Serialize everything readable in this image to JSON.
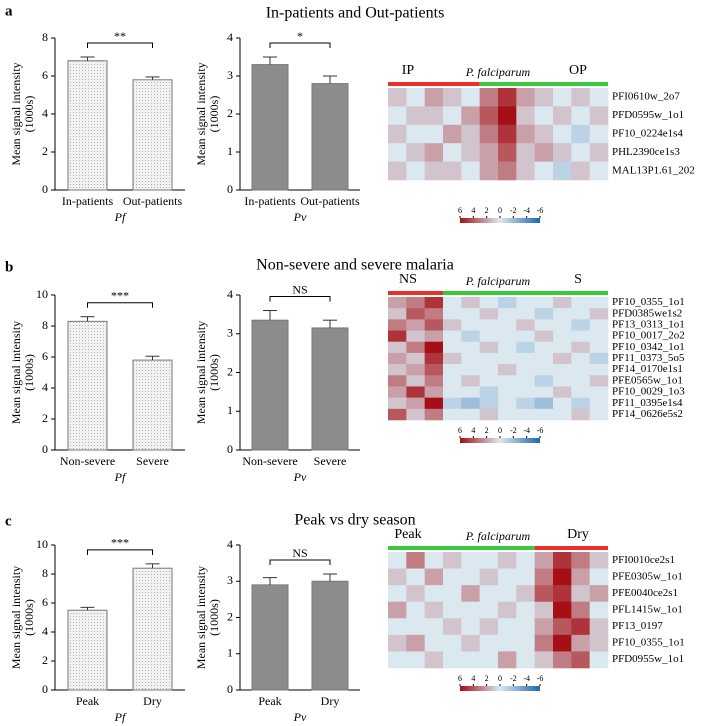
{
  "panels": [
    {
      "letter": "a",
      "title": "In-patients and Out-patients"
    },
    {
      "letter": "b",
      "title": "Non-severe and severe malaria"
    },
    {
      "letter": "c",
      "title": "Peak vs dry season"
    }
  ],
  "chart_data": [
    {
      "type": "bar",
      "categories": [
        "In-patients",
        "Out-patients"
      ],
      "values": [
        6.8,
        5.8
      ],
      "errors": [
        0.2,
        0.15
      ],
      "color": "#f2f2f2",
      "ylim": [
        0,
        8
      ],
      "yticks": [
        0,
        2,
        4,
        6,
        8
      ],
      "ylabel": [
        "Mean signal intensity",
        "(1000s)"
      ],
      "xlabel": "Pf",
      "significance": "**",
      "significance_color": "#e8302a"
    },
    {
      "type": "bar",
      "categories": [
        "In-patients",
        "Out-patients"
      ],
      "values": [
        3.3,
        2.8
      ],
      "errors": [
        0.2,
        0.2
      ],
      "color": "#8c8c8c",
      "ylim": [
        0,
        4
      ],
      "yticks": [
        0,
        1,
        2,
        3,
        4
      ],
      "ylabel": [
        "Mean signal intensity",
        "(1000s)"
      ],
      "xlabel": "Pv",
      "significance": "*",
      "significance_color": "#e8302a"
    },
    {
      "type": "heatmap",
      "species": "P. falciparum",
      "groups": [
        {
          "label": "IP",
          "color": "#e8302a",
          "columns": 5
        },
        {
          "label": "OP",
          "color": "#3cc83c",
          "columns": 7
        }
      ],
      "rows": [
        "PFI0610w_2o7",
        "PFD0595w_1o1",
        "PF10_0224e1s4",
        "PHL2390ce1s3",
        "MAL13P1.61_202"
      ],
      "matrix": [
        [
          1,
          0,
          2,
          1,
          0,
          3,
          5,
          2,
          1,
          0,
          1,
          0
        ],
        [
          0,
          1,
          1,
          0,
          2,
          4,
          6,
          1,
          0,
          1,
          0,
          1
        ],
        [
          1,
          0,
          0,
          2,
          1,
          3,
          5,
          2,
          1,
          0,
          -1,
          0
        ],
        [
          0,
          1,
          2,
          0,
          1,
          2,
          4,
          1,
          2,
          1,
          0,
          1
        ],
        [
          1,
          0,
          1,
          1,
          0,
          2,
          3,
          1,
          0,
          -1,
          1,
          0
        ]
      ],
      "zlim": [
        6,
        -6
      ],
      "zticks": [
        6,
        4,
        2,
        0,
        -2,
        -4,
        -6
      ]
    },
    {
      "type": "bar",
      "categories": [
        "Non-severe",
        "Severe"
      ],
      "values": [
        8.3,
        5.8
      ],
      "errors": [
        0.3,
        0.25
      ],
      "color": "#f2f2f2",
      "ylim": [
        0,
        10
      ],
      "yticks": [
        0,
        2,
        4,
        6,
        8,
        10
      ],
      "ylabel": [
        "Mean signal intensity",
        "(1000s)"
      ],
      "xlabel": "Pf",
      "significance": "***",
      "significance_color": "#e8302a"
    },
    {
      "type": "bar",
      "categories": [
        "Non-severe",
        "Severe"
      ],
      "values": [
        3.35,
        3.15
      ],
      "errors": [
        0.25,
        0.2
      ],
      "color": "#8c8c8c",
      "ylim": [
        0,
        4
      ],
      "yticks": [
        0,
        1,
        2,
        3,
        4
      ],
      "ylabel": [
        "Mean signal intensity",
        "(1000s)"
      ],
      "xlabel": "Pv",
      "significance": "NS",
      "significance_color": "#000000"
    },
    {
      "type": "heatmap",
      "species": "P. falciparum",
      "groups": [
        {
          "label": "NS",
          "color": "#e8302a",
          "columns": 3
        },
        {
          "label": "S",
          "color": "#3cc83c",
          "columns": 9
        }
      ],
      "rows": [
        "PF10_0355_1o1",
        "PFD0385we1s2",
        "PF13_0313_1o1",
        "PF10_0017_2o2",
        "PF10_0342_1o1",
        "PF11_0373_5o5",
        "PF14_0170e1s1",
        "PFE0565w_1o1",
        "PF10_0029_1o3",
        "PF11_0395e1s4",
        "PF14_0626e5s2"
      ],
      "matrix": [
        [
          2,
          3,
          5,
          0,
          1,
          0,
          -1,
          0,
          0,
          1,
          0,
          0
        ],
        [
          1,
          4,
          3,
          0,
          0,
          1,
          0,
          0,
          -1,
          0,
          0,
          1
        ],
        [
          3,
          2,
          4,
          1,
          0,
          0,
          0,
          1,
          0,
          0,
          -1,
          0
        ],
        [
          5,
          1,
          2,
          0,
          -1,
          0,
          0,
          0,
          1,
          0,
          0,
          0
        ],
        [
          1,
          3,
          6,
          0,
          0,
          1,
          0,
          -1,
          0,
          0,
          1,
          0
        ],
        [
          2,
          1,
          5,
          1,
          0,
          0,
          0,
          0,
          0,
          1,
          0,
          -1
        ],
        [
          1,
          2,
          4,
          0,
          0,
          0,
          1,
          0,
          0,
          0,
          0,
          0
        ],
        [
          3,
          1,
          3,
          0,
          1,
          0,
          0,
          0,
          -1,
          0,
          0,
          1
        ],
        [
          2,
          5,
          2,
          0,
          0,
          -1,
          0,
          0,
          0,
          1,
          0,
          0
        ],
        [
          1,
          2,
          6,
          -1,
          -2,
          -1,
          0,
          -1,
          -2,
          0,
          -1,
          0
        ],
        [
          4,
          1,
          3,
          0,
          0,
          1,
          0,
          0,
          0,
          0,
          1,
          0
        ]
      ],
      "zlim": [
        6,
        -6
      ],
      "zticks": [
        6,
        4,
        2,
        0,
        -2,
        -4,
        -6
      ]
    },
    {
      "type": "bar",
      "categories": [
        "Peak",
        "Dry"
      ],
      "values": [
        5.5,
        8.4
      ],
      "errors": [
        0.2,
        0.3
      ],
      "color": "#f2f2f2",
      "ylim": [
        0,
        10
      ],
      "yticks": [
        0,
        2,
        4,
        6,
        8,
        10
      ],
      "ylabel": [
        "Mean signal intensity",
        "(1000s)"
      ],
      "xlabel": "Pf",
      "significance": "***",
      "significance_color": "#e8302a"
    },
    {
      "type": "bar",
      "categories": [
        "Peak",
        "Dry"
      ],
      "values": [
        2.9,
        3.0
      ],
      "errors": [
        0.2,
        0.2
      ],
      "color": "#8c8c8c",
      "ylim": [
        0,
        4
      ],
      "yticks": [
        0,
        1,
        2,
        3,
        4
      ],
      "ylabel": [
        "Mean signal intensity",
        "(1000s)"
      ],
      "xlabel": "Pv",
      "significance": "NS",
      "significance_color": "#000000"
    },
    {
      "type": "heatmap",
      "species": "P. falciparum",
      "groups": [
        {
          "label": "Peak",
          "color": "#3cc83c",
          "columns": 8
        },
        {
          "label": "Dry",
          "color": "#e8302a",
          "columns": 4
        }
      ],
      "rows": [
        "PFI0010ce2s1",
        "PFE0305w_1o1",
        "PFE0040ce2s1",
        "PFL1415w_1o1",
        "PF13_0197",
        "PF10_0355_1o1",
        "PFD0955w_1o1"
      ],
      "matrix": [
        [
          0,
          3,
          0,
          1,
          0,
          0,
          1,
          0,
          2,
          5,
          3,
          1
        ],
        [
          1,
          0,
          2,
          0,
          0,
          1,
          0,
          0,
          3,
          6,
          2,
          0
        ],
        [
          0,
          1,
          0,
          0,
          2,
          0,
          0,
          1,
          4,
          5,
          1,
          2
        ],
        [
          2,
          0,
          1,
          0,
          0,
          0,
          1,
          0,
          1,
          6,
          3,
          0
        ],
        [
          0,
          0,
          0,
          1,
          0,
          1,
          0,
          0,
          2,
          4,
          5,
          1
        ],
        [
          1,
          2,
          0,
          0,
          1,
          0,
          0,
          0,
          3,
          6,
          2,
          1
        ],
        [
          0,
          0,
          1,
          0,
          0,
          0,
          2,
          0,
          1,
          3,
          4,
          0
        ]
      ],
      "zlim": [
        6,
        -6
      ],
      "zticks": [
        6,
        4,
        2,
        0,
        -2,
        -4,
        -6
      ]
    }
  ]
}
